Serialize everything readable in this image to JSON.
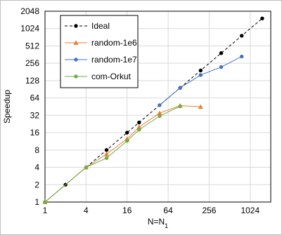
{
  "chart_data": {
    "type": "line",
    "title": "",
    "xlabel": {
      "main": "N=N",
      "sub": "1"
    },
    "ylabel": "Speedup",
    "xscale": "log2",
    "yscale": "log2",
    "xlim": [
      1,
      2048
    ],
    "ylim": [
      1,
      2048
    ],
    "x_ticks": [
      1,
      4,
      16,
      64,
      256,
      1024
    ],
    "y_ticks": [
      1,
      2,
      4,
      8,
      16,
      32,
      64,
      128,
      256,
      512,
      1024,
      2048
    ],
    "grid": true,
    "legend_position": "top-left",
    "series": [
      {
        "name": "Ideal",
        "color": "#000000",
        "marker": "circle",
        "line": "dashed",
        "x": [
          1,
          2,
          8,
          16,
          24,
          96,
          192,
          384,
          768,
          1536
        ],
        "y": [
          1,
          2,
          8,
          16,
          24,
          96,
          192,
          384,
          768,
          1536
        ]
      },
      {
        "name": "random-1e6",
        "color": "#ed7d31",
        "marker": "triangle",
        "line": "solid",
        "x": [
          1,
          4,
          8,
          16,
          24,
          48,
          96,
          192
        ],
        "y": [
          1,
          4,
          6.8,
          12.5,
          20,
          35,
          47,
          45
        ]
      },
      {
        "name": "random-1e7",
        "color": "#4472c4",
        "marker": "circle",
        "line": "solid",
        "x": [
          48,
          96,
          192,
          384,
          768
        ],
        "y": [
          48,
          96,
          160,
          220,
          335
        ]
      },
      {
        "name": "com-Orkut",
        "color": "#70ad47",
        "marker": "circle",
        "line": "solid",
        "x": [
          1,
          4,
          8,
          16,
          24,
          48,
          96
        ],
        "y": [
          1,
          4,
          5.8,
          11.5,
          18,
          31,
          46
        ]
      }
    ]
  }
}
